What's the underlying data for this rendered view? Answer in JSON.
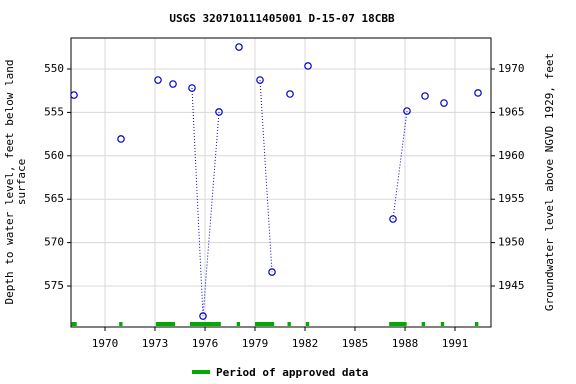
{
  "chart_data": {
    "type": "scatter",
    "title": "USGS 320710111405001 D-15-07 18CBB",
    "y_label": "Depth to water level, feet below land surface",
    "y2_label": "Groundwater level above NGVD 1929, feet",
    "x": [
      1968.14,
      null,
      1970.96,
      null,
      1973.18,
      null,
      1974.08,
      null,
      1975.22,
      1975.88,
      1976.84,
      null,
      1978.04,
      null,
      1979.3,
      1980.02,
      null,
      1981.1,
      null,
      1982.18,
      null,
      1987.28,
      1988.12,
      null,
      1989.2,
      null,
      1990.34,
      null,
      1992.38
    ],
    "series": [
      {
        "color": "#0000cc",
        "values": [
          553.0,
          null,
          558.06,
          null,
          551.27,
          null,
          551.73,
          null,
          552.19,
          578.46,
          554.95,
          null,
          547.47,
          null,
          551.27,
          573.39,
          null,
          552.88,
          null,
          549.65,
          null,
          567.28,
          554.84,
          null,
          553.11,
          null,
          553.92,
          null,
          552.76
        ]
      }
    ],
    "xlim": [
      1967.96,
      1993.16
    ],
    "xticks": [
      1970,
      1973,
      1976,
      1979,
      1982,
      1985,
      1988,
      1991
    ],
    "ylim": [
      546.43,
      579.72
    ],
    "y_inverted": true,
    "yticks": [
      550,
      555,
      560,
      565,
      570,
      575
    ],
    "y2lim": [
      1940.28,
      1973.57
    ],
    "y2ticks": [
      1970,
      1965,
      1960,
      1955,
      1950,
      1945
    ],
    "grid": true,
    "approved_periods": {
      "name": "Period of approved data",
      "color": "#00aa00",
      "spans": [
        [
          1968.0,
          1968.3
        ],
        [
          1970.85,
          1971.05
        ],
        [
          1973.05,
          1974.2
        ],
        [
          1975.1,
          1976.95
        ],
        [
          1977.9,
          1978.1
        ],
        [
          1979.0,
          1980.15
        ],
        [
          1980.95,
          1981.15
        ],
        [
          1982.05,
          1982.25
        ],
        [
          1987.05,
          1988.1
        ],
        [
          1989.0,
          1989.2
        ],
        [
          1990.15,
          1990.35
        ],
        [
          1992.2,
          1992.4
        ]
      ]
    }
  }
}
